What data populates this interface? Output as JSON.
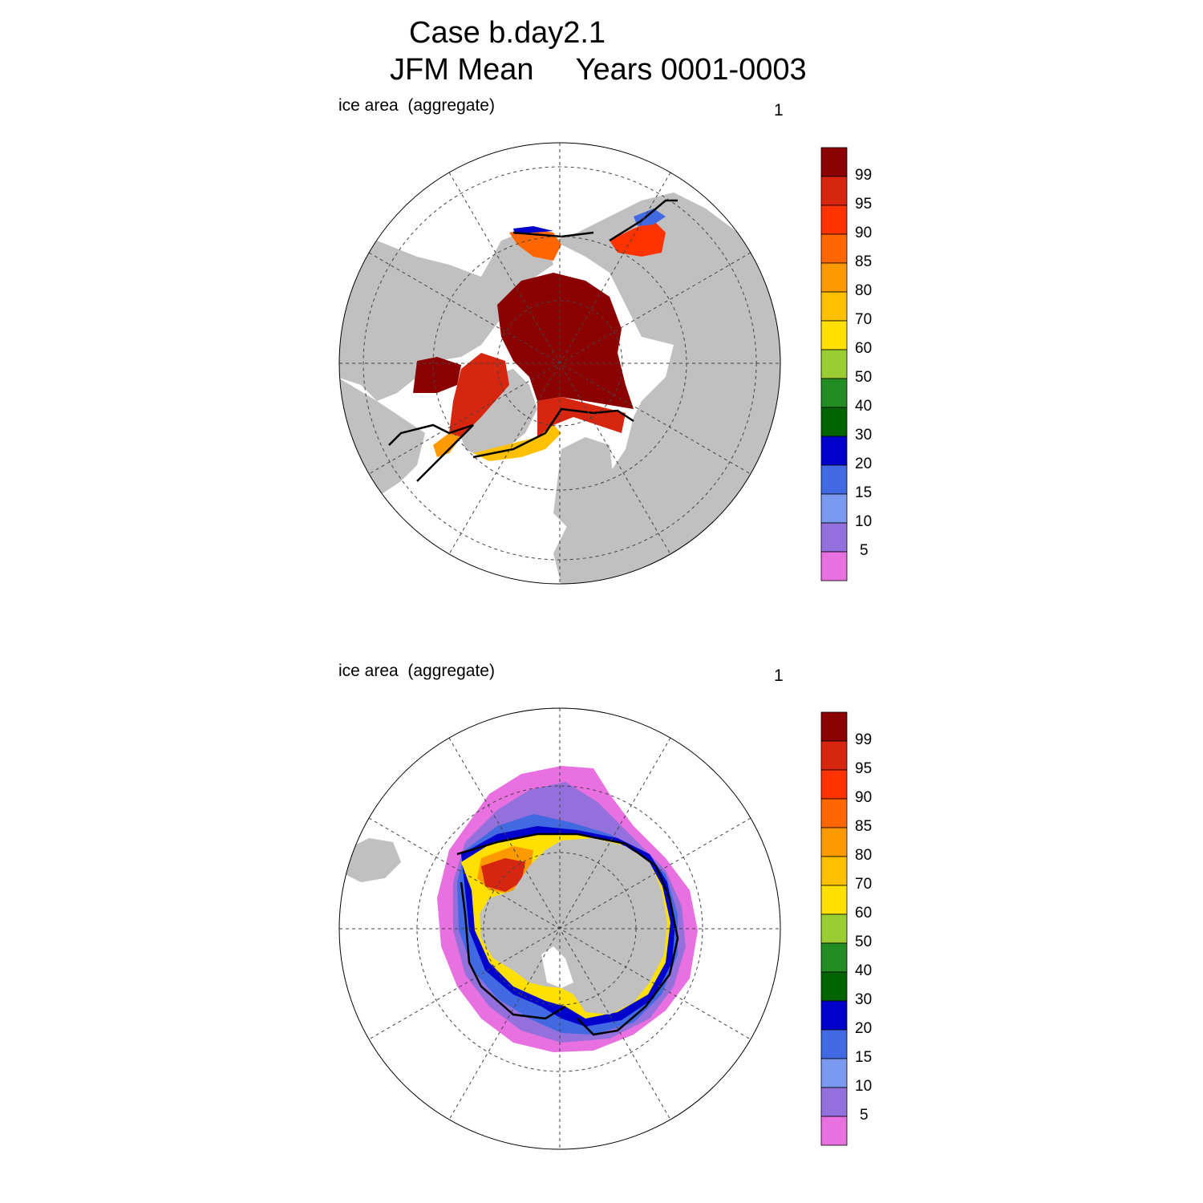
{
  "title": {
    "case": "Case b.day2.1",
    "period": "JFM Mean     Years 0001-0003"
  },
  "panels": [
    {
      "id": "north",
      "label": "ice area  (aggregate)",
      "number": "1",
      "hemisphere": "Northern Hemisphere polar view"
    },
    {
      "id": "south",
      "label": "ice area  (aggregate)",
      "number": "1",
      "hemisphere": "Southern Hemisphere polar view"
    }
  ],
  "colorbar": {
    "levels": [
      "99",
      "95",
      "90",
      "85",
      "80",
      "70",
      "60",
      "50",
      "40",
      "30",
      "20",
      "15",
      "10",
      "5"
    ],
    "colors": [
      "#8b0000",
      "#d7260f",
      "#ff3300",
      "#ff6600",
      "#ff9900",
      "#ffc000",
      "#ffe000",
      "#9acd32",
      "#228b22",
      "#006400",
      "#0000cd",
      "#4169e1",
      "#7a9af0",
      "#9370db",
      "#e870e0"
    ]
  },
  "colors": {
    "land": "#c0c0c0",
    "ocean": "#ffffff",
    "extent_line": "#000000"
  }
}
